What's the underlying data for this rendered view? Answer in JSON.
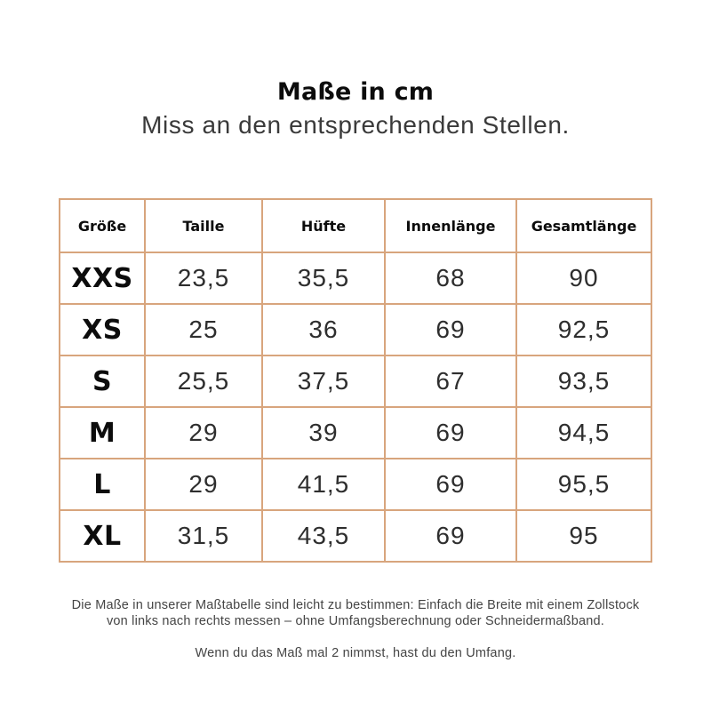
{
  "page": {
    "title": "Maße in cm",
    "subtitle": "Miss an den entsprechenden Stellen."
  },
  "table": {
    "columns": [
      "Größe",
      "Taille",
      "Hüfte",
      "Innenlänge",
      "Gesamtlänge"
    ],
    "rows": [
      {
        "size": "XXS",
        "values": [
          "23,5",
          "35,5",
          "68",
          "90"
        ]
      },
      {
        "size": "XS",
        "values": [
          "25",
          "36",
          "69",
          "92,5"
        ]
      },
      {
        "size": "S",
        "values": [
          "25,5",
          "37,5",
          "67",
          "93,5"
        ]
      },
      {
        "size": "M",
        "values": [
          "29",
          "39",
          "69",
          "94,5"
        ]
      },
      {
        "size": "L",
        "values": [
          "29",
          "41,5",
          "69",
          "95,5"
        ]
      },
      {
        "size": "XL",
        "values": [
          "31,5",
          "43,5",
          "69",
          "95"
        ]
      }
    ],
    "unit": "cm",
    "border_color": "#d8a57d"
  },
  "footer": {
    "paragraph1": "Die Maße in unserer Maßtabelle sind leicht zu bestimmen: Einfach die Breite mit einem Zollstock von links nach rechts messen – ohne Umfangsberechnung oder Schneidermaßband.",
    "paragraph2": "Wenn du das Maß mal 2 nimmst, hast du den Umfang."
  }
}
